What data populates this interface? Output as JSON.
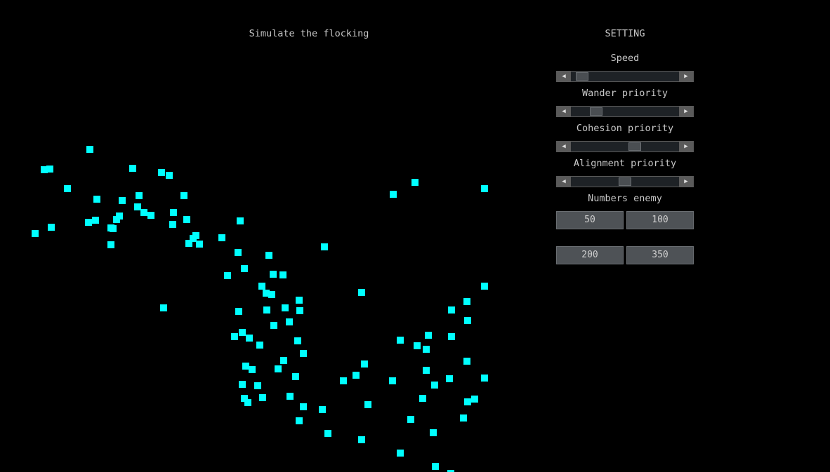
{
  "title": "Simulate the flocking",
  "boid_color": "#00ffff",
  "settings": {
    "title": "SETTING",
    "sliders": [
      {
        "label": "Speed",
        "value": 0.05
      },
      {
        "label": "Wander priority",
        "value": 0.2
      },
      {
        "label": "Cohesion priority",
        "value": 0.6
      },
      {
        "label": "Alignment priority",
        "value": 0.5
      }
    ],
    "enemy_label": "Numbers enemy",
    "enemy_buttons": [
      "50",
      "100",
      "200",
      "350"
    ]
  }
}
